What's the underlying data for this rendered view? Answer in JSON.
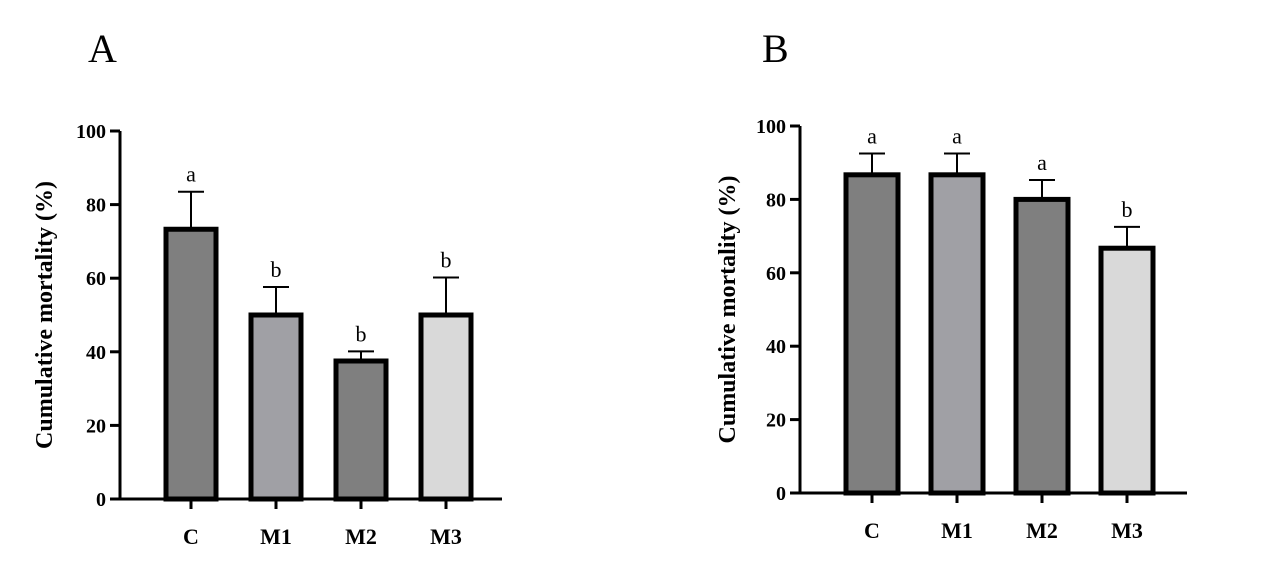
{
  "chart_data": [
    {
      "panel": "A",
      "type": "bar",
      "categories": [
        "C",
        "M1",
        "M2",
        "M3"
      ],
      "values": [
        73.3,
        50,
        37.5,
        50
      ],
      "errors": [
        10.2,
        7.6,
        2.6,
        10.2
      ],
      "significance": [
        "a",
        "b",
        "b",
        "b"
      ],
      "colors": [
        "#7f7f7f",
        "#a0a0a5",
        "#7f7f7f",
        "#d9d9d9"
      ],
      "ylabel": "Cumulative mortality (%)",
      "ylim": [
        0,
        100
      ],
      "yticks": [
        0,
        20,
        40,
        60,
        80,
        100
      ],
      "grid": false
    },
    {
      "panel": "B",
      "type": "bar",
      "categories": [
        "C",
        "M1",
        "M2",
        "M3"
      ],
      "values": [
        86.7,
        86.7,
        80,
        66.7
      ],
      "errors": [
        5.8,
        5.8,
        5.3,
        5.8
      ],
      "significance": [
        "a",
        "a",
        "a",
        "b"
      ],
      "colors": [
        "#7f7f7f",
        "#a0a0a5",
        "#7f7f7f",
        "#d9d9d9"
      ],
      "ylabel": "Cumulative mortality (%)",
      "ylim": [
        0,
        100
      ],
      "yticks": [
        0,
        20,
        40,
        60,
        80,
        100
      ],
      "grid": false
    }
  ]
}
